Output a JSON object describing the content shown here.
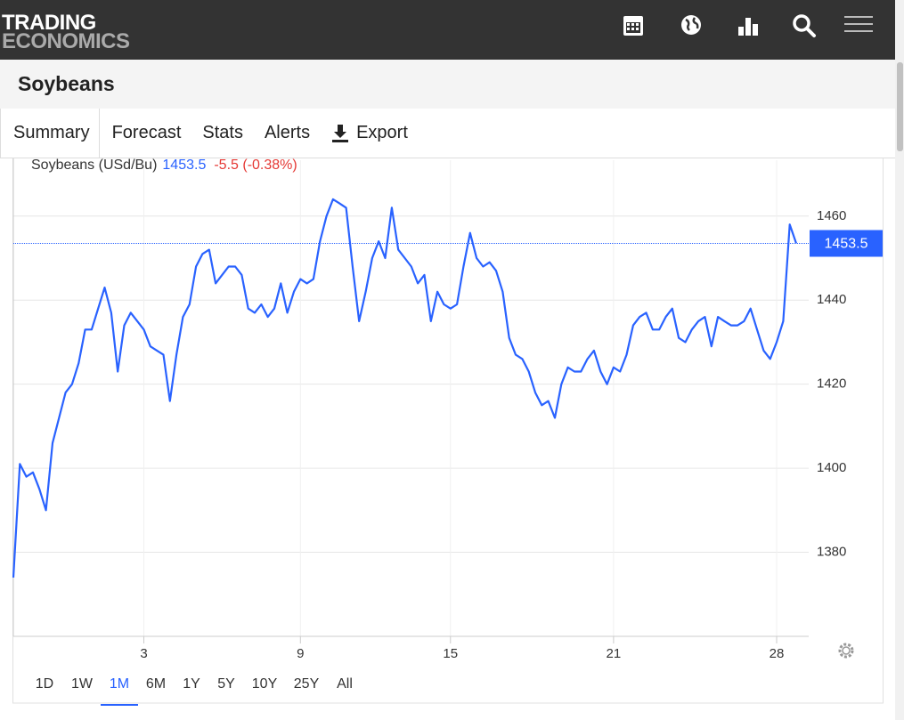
{
  "header": {
    "logo": [
      "TRADING",
      "ECONOMICS"
    ]
  },
  "page_title": "Soybeans",
  "tabs": [
    "Summary",
    "Forecast",
    "Stats",
    "Alerts",
    "Export"
  ],
  "active_tab": "Summary",
  "ranges": [
    "1D",
    "1W",
    "1M",
    "6M",
    "1Y",
    "5Y",
    "10Y",
    "25Y",
    "All"
  ],
  "active_range": "1M",
  "chart_data": {
    "type": "line",
    "price": 1453.5,
    "change": "-5.5 (-0.38%)",
    "series": [
      {
        "name": "Soybeans (USd/Bu)",
        "color": "#2962ff",
        "values": [
          1374,
          1401,
          1398,
          1399,
          1395,
          1390,
          1406,
          1412,
          1418,
          1420,
          1425,
          1433,
          1433,
          1438,
          1443,
          1437,
          1423,
          1434,
          1437,
          1435,
          1433,
          1429,
          1428,
          1427,
          1416,
          1427,
          1436,
          1439,
          1448,
          1451,
          1452,
          1444,
          1446,
          1448,
          1448,
          1446,
          1438,
          1437,
          1439,
          1436,
          1438,
          1444,
          1437,
          1442,
          1445,
          1444,
          1445,
          1454,
          1460,
          1464,
          1463,
          1462,
          1448,
          1435,
          1442,
          1450,
          1454,
          1450,
          1462,
          1452,
          1450,
          1448,
          1444,
          1446,
          1435,
          1442,
          1439,
          1438,
          1439,
          1448,
          1456,
          1450,
          1448,
          1449,
          1447,
          1442,
          1431,
          1427,
          1426,
          1423,
          1418,
          1415,
          1416,
          1412,
          1420,
          1424,
          1423,
          1423,
          1426,
          1428,
          1423,
          1420,
          1424,
          1423,
          1427,
          1434,
          1436,
          1437,
          1433,
          1433,
          1436,
          1438,
          1431,
          1430,
          1433,
          1435,
          1436,
          1429,
          1436,
          1435,
          1434,
          1434,
          1435,
          1438,
          1433,
          1428,
          1426,
          1430,
          1435,
          1458,
          1453.5
        ]
      }
    ],
    "categories": [
      null,
      null,
      null,
      null,
      null,
      null,
      null,
      null,
      null,
      null,
      null,
      null,
      null,
      null,
      null,
      null,
      null,
      null,
      null,
      null,
      "3",
      null,
      null,
      null,
      null,
      null,
      null,
      null,
      null,
      null,
      null,
      null,
      null,
      null,
      null,
      null,
      null,
      null,
      null,
      null,
      null,
      null,
      null,
      null,
      "9",
      null,
      null,
      null,
      null,
      null,
      null,
      null,
      null,
      null,
      null,
      null,
      null,
      null,
      null,
      null,
      null,
      null,
      null,
      null,
      null,
      null,
      null,
      "15",
      null,
      null,
      null,
      null,
      null,
      null,
      null,
      null,
      null,
      null,
      null,
      null,
      null,
      null,
      null,
      null,
      null,
      null,
      null,
      null,
      null,
      null,
      null,
      null,
      "21",
      null,
      null,
      null,
      null,
      null,
      null,
      null,
      null,
      null,
      null,
      null,
      null,
      null,
      null,
      null,
      null,
      null,
      null,
      null,
      null,
      null,
      null,
      null,
      null,
      "28",
      null,
      null,
      null
    ],
    "ylim": [
      1360,
      1473.3
    ],
    "yticks": [
      1380,
      1400,
      1420,
      1440,
      1460
    ],
    "grid": true
  }
}
